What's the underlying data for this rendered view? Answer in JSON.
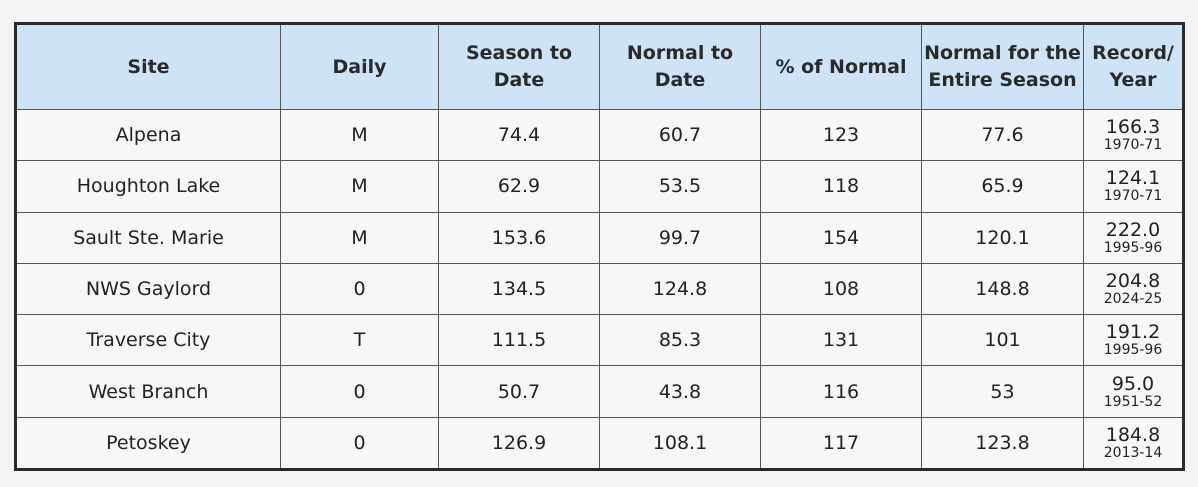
{
  "table": {
    "headers": [
      "Site",
      "Daily",
      "Season to Date",
      "Normal to Date",
      "% of Normal",
      "Normal for the Entire Season",
      "Record/Year"
    ],
    "rows": [
      [
        "Alpena",
        "M",
        "74.4",
        "60.7",
        "123",
        "77.6",
        {
          "record": "166.3",
          "year": "1970-71"
        }
      ],
      [
        "Houghton Lake",
        "M",
        "62.9",
        "53.5",
        "118",
        "65.9",
        {
          "record": "124.1",
          "year": "1970-71"
        }
      ],
      [
        "Sault Ste. Marie",
        "M",
        "153.6",
        "99.7",
        "154",
        "120.1",
        {
          "record": "222.0",
          "year": "1995-96"
        }
      ],
      [
        "NWS Gaylord",
        "0",
        "134.5",
        "124.8",
        "108",
        "148.8",
        {
          "record": "204.8",
          "year": "2024-25"
        }
      ],
      [
        "Traverse City",
        "T",
        "111.5",
        "85.3",
        "131",
        "101",
        {
          "record": "191.2",
          "year": "1995-96"
        }
      ],
      [
        "West Branch",
        "0",
        "50.7",
        "43.8",
        "116",
        "53",
        {
          "record": "95.0",
          "year": "1951-52"
        }
      ],
      [
        "Petoskey",
        "0",
        "126.9",
        "108.1",
        "117",
        "123.8",
        {
          "record": "184.8",
          "year": "2013-14"
        }
      ]
    ]
  }
}
